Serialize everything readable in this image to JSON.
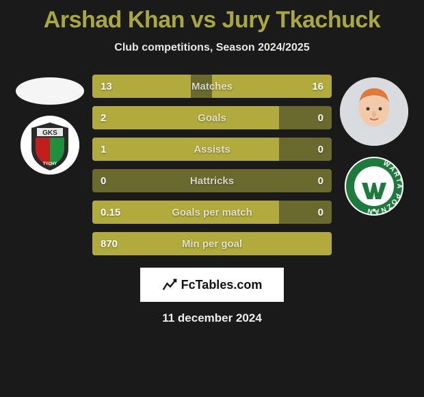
{
  "colors": {
    "background": "#1a1a1a",
    "title": "#a9a73f",
    "bar_highlight": "#b1aa3c",
    "bar_base": "#6b6a2e",
    "text_light": "#e8e8e8"
  },
  "header": {
    "title": "Arshad Khan vs Jury Tkachuck",
    "subtitle": "Club competitions, Season 2024/2025"
  },
  "players": {
    "left": {
      "name": "Arshad Khan",
      "team": "GKS Tychy",
      "team_logo_colors": {
        "outer": "#ffffff",
        "shield_top": "#2a2a2a",
        "shield_left": "#c21e1e",
        "shield_right": "#1e8f3a"
      }
    },
    "right": {
      "name": "Jury Tkachuck",
      "team": "Warta Poznań",
      "team_logo_colors": {
        "ring": "#1e7a3c",
        "inner": "#ffffff",
        "text": "#1e7a3c",
        "year": "1912"
      },
      "face_colors": {
        "skin": "#f2c9a9",
        "hair": "#e07a3c",
        "shirt": "#d9dde0"
      }
    }
  },
  "stats": [
    {
      "label": "Matches",
      "left_val": "13",
      "right_val": "16",
      "left_pct": 41,
      "right_pct": 50
    },
    {
      "label": "Goals",
      "left_val": "2",
      "right_val": "0",
      "left_pct": 78,
      "right_pct": 0
    },
    {
      "label": "Assists",
      "left_val": "1",
      "right_val": "0",
      "left_pct": 78,
      "right_pct": 0
    },
    {
      "label": "Hattricks",
      "left_val": "0",
      "right_val": "0",
      "left_pct": 0,
      "right_pct": 0
    },
    {
      "label": "Goals per match",
      "left_val": "0.15",
      "right_val": "0",
      "left_pct": 78,
      "right_pct": 0
    },
    {
      "label": "Min per goal",
      "left_val": "870",
      "right_val": "",
      "left_pct": 100,
      "right_pct": 0
    }
  ],
  "footer": {
    "brand": "FcTables.com",
    "date": "11 december 2024"
  }
}
